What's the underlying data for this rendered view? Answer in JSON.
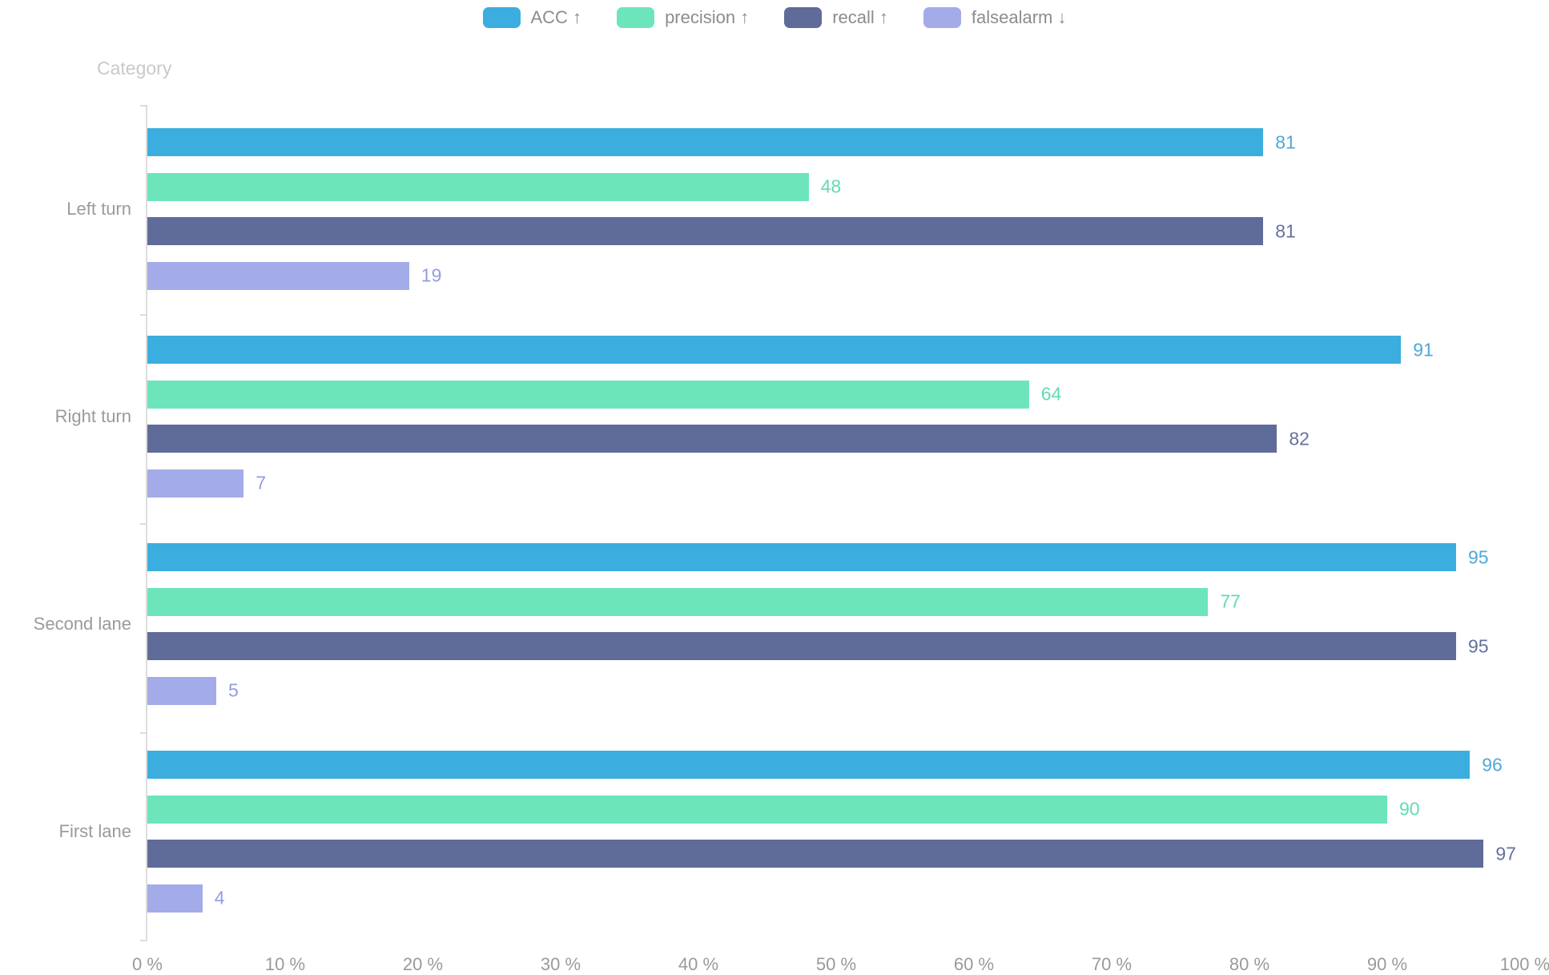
{
  "chart_data": {
    "type": "bar",
    "orientation": "horizontal",
    "title": "",
    "category_axis_label": "Category",
    "categories": [
      "Left turn",
      "Right turn",
      "Second lane",
      "First lane"
    ],
    "series": [
      {
        "name": "ACC ↑",
        "values": [
          81,
          91,
          95,
          96
        ],
        "color": "#3CADDF",
        "label_color": "#4FA8DA"
      },
      {
        "name": "precision ↑",
        "values": [
          48,
          64,
          77,
          90
        ],
        "color": "#6CE5BB",
        "label_color": "#63DBB2"
      },
      {
        "name": "recall ↑",
        "values": [
          81,
          82,
          95,
          97
        ],
        "color": "#5F6B99",
        "label_color": "#64719F"
      },
      {
        "name": "falsealarm ↓",
        "values": [
          19,
          7,
          5,
          4
        ],
        "color": "#A3ABE8",
        "label_color": "#939CE2"
      }
    ],
    "xlim": [
      0,
      100
    ],
    "x_tick_labels": [
      "0 %",
      "10 %",
      "20 %",
      "30 %",
      "40 %",
      "50 %",
      "60 %",
      "70 %",
      "80 %",
      "90 %",
      "100 %"
    ],
    "grid": false,
    "legend_position": "top-center",
    "value_labels": true,
    "axis_line_color": "#dcdcdc",
    "axis_text_color": "#9a9a9a",
    "axis_name_color": "#c9c9c9"
  }
}
